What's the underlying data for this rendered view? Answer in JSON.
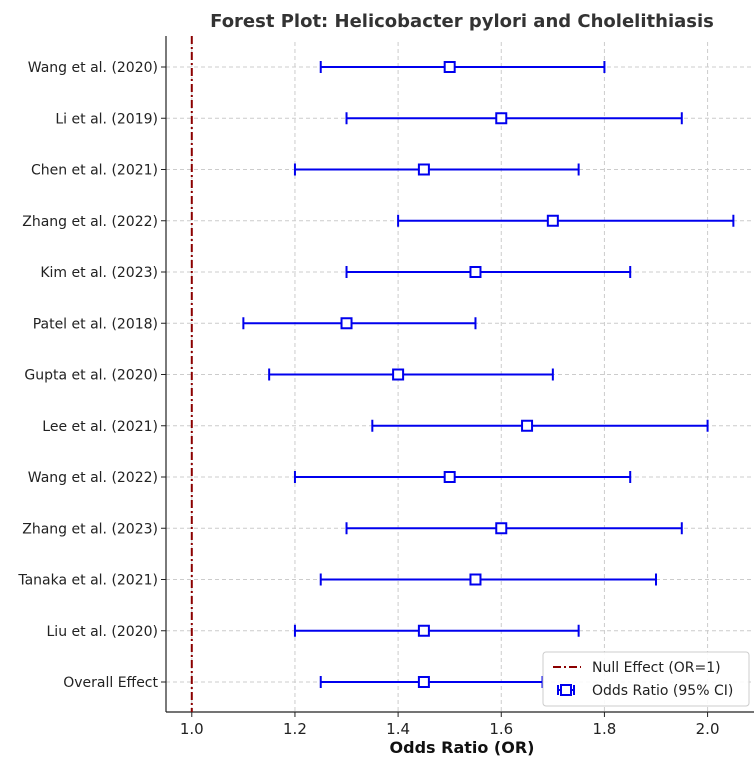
{
  "chart_data": {
    "type": "forest",
    "title": "Forest Plot: Helicobacter pylori and Cholelithiasis",
    "xlabel": "Odds Ratio (OR)",
    "ylabel": "",
    "xlim": [
      0.95,
      2.09
    ],
    "xticks": [
      1.0,
      1.2,
      1.4,
      1.6,
      1.8,
      2.0
    ],
    "xtick_labels": [
      "1.0",
      "1.2",
      "1.4",
      "1.6",
      "1.8",
      "2.0"
    ],
    "grid": true,
    "legend_position": "lower-right",
    "reference_line": {
      "x": 1.0,
      "label": "Null Effect (OR=1)",
      "color": "#8b0000",
      "style": "dash-dot"
    },
    "series_label": "Odds Ratio (95% CI)",
    "series_color": "#0000ee",
    "studies": [
      {
        "label": "Wang et al. (2020)",
        "or": 1.5,
        "lower": 1.25,
        "upper": 1.8
      },
      {
        "label": "Li et al. (2019)",
        "or": 1.6,
        "lower": 1.3,
        "upper": 1.95
      },
      {
        "label": "Chen et al. (2021)",
        "or": 1.45,
        "lower": 1.2,
        "upper": 1.75
      },
      {
        "label": "Zhang et al. (2022)",
        "or": 1.7,
        "lower": 1.4,
        "upper": 2.05
      },
      {
        "label": "Kim et al. (2023)",
        "or": 1.55,
        "lower": 1.3,
        "upper": 1.85
      },
      {
        "label": "Patel et al. (2018)",
        "or": 1.3,
        "lower": 1.1,
        "upper": 1.55
      },
      {
        "label": "Gupta et al. (2020)",
        "or": 1.4,
        "lower": 1.15,
        "upper": 1.7
      },
      {
        "label": "Lee et al. (2021)",
        "or": 1.65,
        "lower": 1.35,
        "upper": 2.0
      },
      {
        "label": "Wang et al. (2022)",
        "or": 1.5,
        "lower": 1.2,
        "upper": 1.85
      },
      {
        "label": "Zhang et al. (2023)",
        "or": 1.6,
        "lower": 1.3,
        "upper": 1.95
      },
      {
        "label": "Tanaka et al. (2021)",
        "or": 1.55,
        "lower": 1.25,
        "upper": 1.9
      },
      {
        "label": "Liu et al. (2020)",
        "or": 1.45,
        "lower": 1.2,
        "upper": 1.75
      },
      {
        "label": "Overall Effect",
        "or": 1.45,
        "lower": 1.25,
        "upper": 1.68
      }
    ]
  }
}
